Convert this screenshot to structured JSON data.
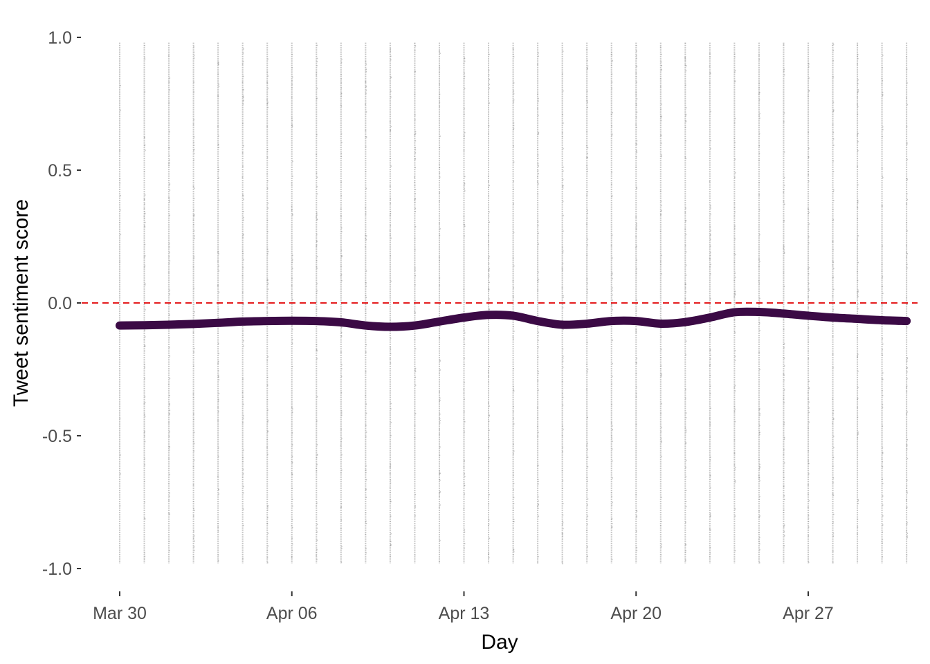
{
  "chart_data": {
    "type": "scatter",
    "title": "",
    "xlabel": "Day",
    "ylabel": "Tweet sentiment score",
    "x_ticks": [
      "Mar 30",
      "Apr 06",
      "Apr 13",
      "Apr 20",
      "Apr 27"
    ],
    "x_tick_dates": [
      "2020-03-30",
      "2020-04-06",
      "2020-04-13",
      "2020-04-20",
      "2020-04-27"
    ],
    "y_ticks": [
      "-1.0",
      "-0.5",
      "0.0",
      "0.5",
      "1.0"
    ],
    "y_tick_values": [
      -1.0,
      -0.5,
      0.0,
      0.5,
      1.0
    ],
    "xlim": [
      "2020-03-28",
      "2020-05-02"
    ],
    "ylim": [
      -1.05,
      1.05
    ],
    "grid": false,
    "legend": "none",
    "scatter": {
      "description": "individual tweet scores as faint grey points stacked in one column per day",
      "days": [
        "2020-03-30",
        "2020-03-31",
        "2020-04-01",
        "2020-04-02",
        "2020-04-03",
        "2020-04-04",
        "2020-04-05",
        "2020-04-06",
        "2020-04-07",
        "2020-04-08",
        "2020-04-09",
        "2020-04-10",
        "2020-04-11",
        "2020-04-12",
        "2020-04-13",
        "2020-04-14",
        "2020-04-15",
        "2020-04-16",
        "2020-04-17",
        "2020-04-18",
        "2020-04-19",
        "2020-04-20",
        "2020-04-21",
        "2020-04-22",
        "2020-04-23",
        "2020-04-24",
        "2020-04-25",
        "2020-04-26",
        "2020-04-27",
        "2020-04-28",
        "2020-04-29",
        "2020-04-30",
        "2020-05-01"
      ],
      "y_range_per_day": [
        -0.98,
        0.98
      ],
      "color": "#b3b3b3"
    },
    "reference_line": {
      "y": 0.0,
      "style": "dashed",
      "color": "#e41a1c"
    },
    "series": [
      {
        "type": "smooth-line",
        "color": "#3b0a45",
        "x": [
          "2020-03-30",
          "2020-03-31",
          "2020-04-01",
          "2020-04-02",
          "2020-04-03",
          "2020-04-04",
          "2020-04-05",
          "2020-04-06",
          "2020-04-07",
          "2020-04-08",
          "2020-04-09",
          "2020-04-10",
          "2020-04-11",
          "2020-04-12",
          "2020-04-13",
          "2020-04-14",
          "2020-04-15",
          "2020-04-16",
          "2020-04-17",
          "2020-04-18",
          "2020-04-19",
          "2020-04-20",
          "2020-04-21",
          "2020-04-22",
          "2020-04-23",
          "2020-04-24",
          "2020-04-25",
          "2020-04-26",
          "2020-04-27",
          "2020-04-28",
          "2020-04-29",
          "2020-04-30",
          "2020-05-01"
        ],
        "y": [
          -0.085,
          -0.084,
          -0.082,
          -0.079,
          -0.075,
          -0.07,
          -0.068,
          -0.067,
          -0.068,
          -0.073,
          -0.085,
          -0.09,
          -0.085,
          -0.07,
          -0.055,
          -0.045,
          -0.048,
          -0.068,
          -0.082,
          -0.078,
          -0.068,
          -0.068,
          -0.078,
          -0.072,
          -0.055,
          -0.035,
          -0.034,
          -0.04,
          -0.048,
          -0.055,
          -0.06,
          -0.065,
          -0.068
        ]
      }
    ]
  }
}
